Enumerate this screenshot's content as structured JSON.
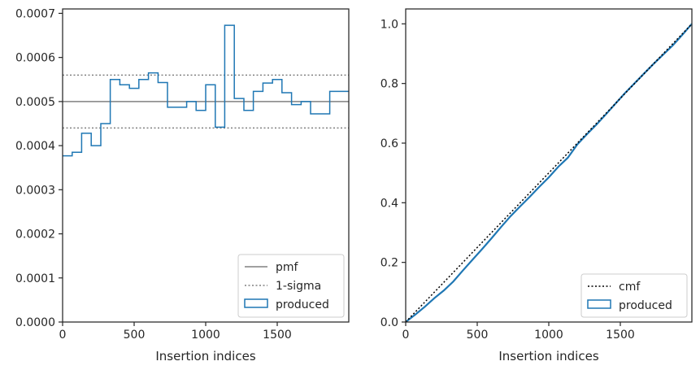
{
  "chart_data": [
    {
      "type": "line",
      "subtype": "step-histogram",
      "xlabel": "Insertion indices",
      "ylabel": "",
      "xlim": [
        0,
        2000
      ],
      "ylim": [
        0,
        0.00071
      ],
      "xticks": [
        0,
        500,
        1000,
        1500
      ],
      "xtick_labels": [
        "0",
        "500",
        "1000",
        "1500"
      ],
      "yticks": [
        0,
        0.0001,
        0.0002,
        0.0003,
        0.0004,
        0.0005,
        0.0006,
        0.0007
      ],
      "ytick_labels": [
        "0.0000",
        "0.0001",
        "0.0002",
        "0.0003",
        "0.0004",
        "0.0005",
        "0.0006",
        "0.0007"
      ],
      "grid": false,
      "legend_position": "lower-right",
      "pmf": 0.0005,
      "sigma_lines": [
        0.00044,
        0.00056
      ],
      "bin_edges": [
        0,
        67,
        133,
        200,
        267,
        333,
        400,
        467,
        533,
        600,
        667,
        733,
        800,
        867,
        933,
        1000,
        1067,
        1133,
        1200,
        1267,
        1333,
        1400,
        1467,
        1533,
        1600,
        1667,
        1733,
        1800,
        1867,
        1933,
        2000
      ],
      "produced": [
        0.000377,
        0.000385,
        0.000428,
        0.0004,
        0.00045,
        0.00055,
        0.000538,
        0.00053,
        0.00055,
        0.000565,
        0.000543,
        0.000487,
        0.000487,
        0.0005,
        0.00048,
        0.000538,
        0.000442,
        0.000673,
        0.000507,
        0.00048,
        0.000523,
        0.000542,
        0.00055,
        0.00052,
        0.000493,
        0.0005,
        0.000472,
        0.000472,
        0.000523,
        0.000523
      ],
      "series": [
        {
          "name": "pmf",
          "color": "#808080",
          "style": "solid"
        },
        {
          "name": "1-sigma",
          "color": "#808080",
          "style": "dotted"
        },
        {
          "name": "produced",
          "color": "#1f77b4",
          "style": "step"
        }
      ]
    },
    {
      "type": "line",
      "xlabel": "Insertion indices",
      "ylabel": "",
      "xlim": [
        0,
        2000
      ],
      "ylim": [
        0,
        1.05
      ],
      "xticks": [
        0,
        500,
        1000,
        1500
      ],
      "xtick_labels": [
        "0",
        "500",
        "1000",
        "1500"
      ],
      "yticks": [
        0,
        0.2,
        0.4,
        0.6,
        0.8,
        1.0
      ],
      "ytick_labels": [
        "0.0",
        "0.2",
        "0.4",
        "0.6",
        "0.8",
        "1.0"
      ],
      "grid": false,
      "legend_position": "lower-right",
      "cmf": {
        "x": [
          0,
          2000
        ],
        "y": [
          0,
          1.0
        ]
      },
      "produced": {
        "x": [
          0,
          67,
          133,
          200,
          267,
          333,
          400,
          467,
          533,
          600,
          667,
          733,
          800,
          867,
          933,
          1000,
          1067,
          1133,
          1200,
          1267,
          1333,
          1400,
          1467,
          1533,
          1600,
          1667,
          1733,
          1800,
          1867,
          1933,
          2000
        ],
        "y": [
          0,
          0.025,
          0.051,
          0.08,
          0.106,
          0.136,
          0.173,
          0.209,
          0.244,
          0.281,
          0.319,
          0.355,
          0.388,
          0.42,
          0.453,
          0.485,
          0.521,
          0.551,
          0.596,
          0.63,
          0.662,
          0.697,
          0.733,
          0.768,
          0.801,
          0.834,
          0.866,
          0.897,
          0.928,
          0.963,
          1.0
        ]
      },
      "series": [
        {
          "name": "cmf",
          "color": "#000000",
          "style": "dotted"
        },
        {
          "name": "produced",
          "color": "#1f77b4",
          "style": "solid"
        }
      ]
    }
  ]
}
